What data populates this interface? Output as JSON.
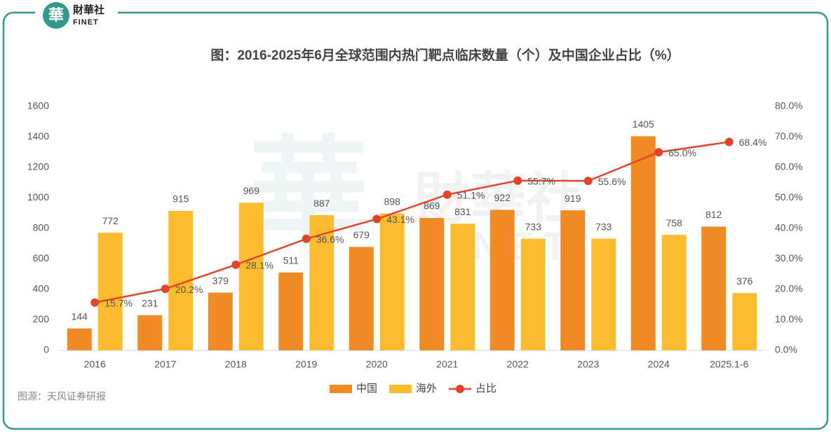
{
  "logo": {
    "mark": "華",
    "name": "財華社",
    "sub": "FINET"
  },
  "source": "图源：天风证券研报",
  "chart_data": {
    "type": "bar_line",
    "title": "图：2016-2025年6月全球范围内热门靶点临床数量（个）及中国企业占比（%）",
    "categories": [
      "2016",
      "2017",
      "2018",
      "2019",
      "2020",
      "2021",
      "2022",
      "2023",
      "2024",
      "2025.1-6"
    ],
    "series": [
      {
        "name": "中国",
        "color": "#f08a24",
        "type": "bar",
        "values": [
          144,
          231,
          379,
          511,
          679,
          869,
          922,
          919,
          1405,
          812
        ]
      },
      {
        "name": "海外",
        "color": "#fbbd2f",
        "type": "bar",
        "values": [
          772,
          915,
          969,
          887,
          898,
          831,
          733,
          733,
          758,
          376
        ]
      },
      {
        "name": "占比",
        "color": "#e2452b",
        "type": "line",
        "axis": "y2",
        "values": [
          15.7,
          20.2,
          28.1,
          36.6,
          43.1,
          51.1,
          55.7,
          55.6,
          65.0,
          68.4
        ],
        "value_labels": [
          "15.7%",
          "20.2%",
          "28.1%",
          "36.6%",
          "43.1%",
          "51.1%",
          "55.7%",
          "55.6%",
          "65.0%",
          "68.4%"
        ]
      }
    ],
    "ylim": [
      0,
      1600
    ],
    "yticks": [
      0,
      200,
      400,
      600,
      800,
      1000,
      1200,
      1400,
      1600
    ],
    "y2lim": [
      0,
      80
    ],
    "y2ticks": [
      {
        "value": 0,
        "label": "0.0%"
      },
      {
        "value": 10,
        "label": "10.0%"
      },
      {
        "value": 20,
        "label": "20.0%"
      },
      {
        "value": 30,
        "label": "30.0%"
      },
      {
        "value": 40,
        "label": "40.0%"
      },
      {
        "value": 50,
        "label": "50.0%"
      },
      {
        "value": 60,
        "label": "60.0%"
      },
      {
        "value": 70,
        "label": "70.0%"
      },
      {
        "value": 80,
        "label": "80.0%"
      }
    ],
    "grid": false,
    "legend": "bottom"
  }
}
